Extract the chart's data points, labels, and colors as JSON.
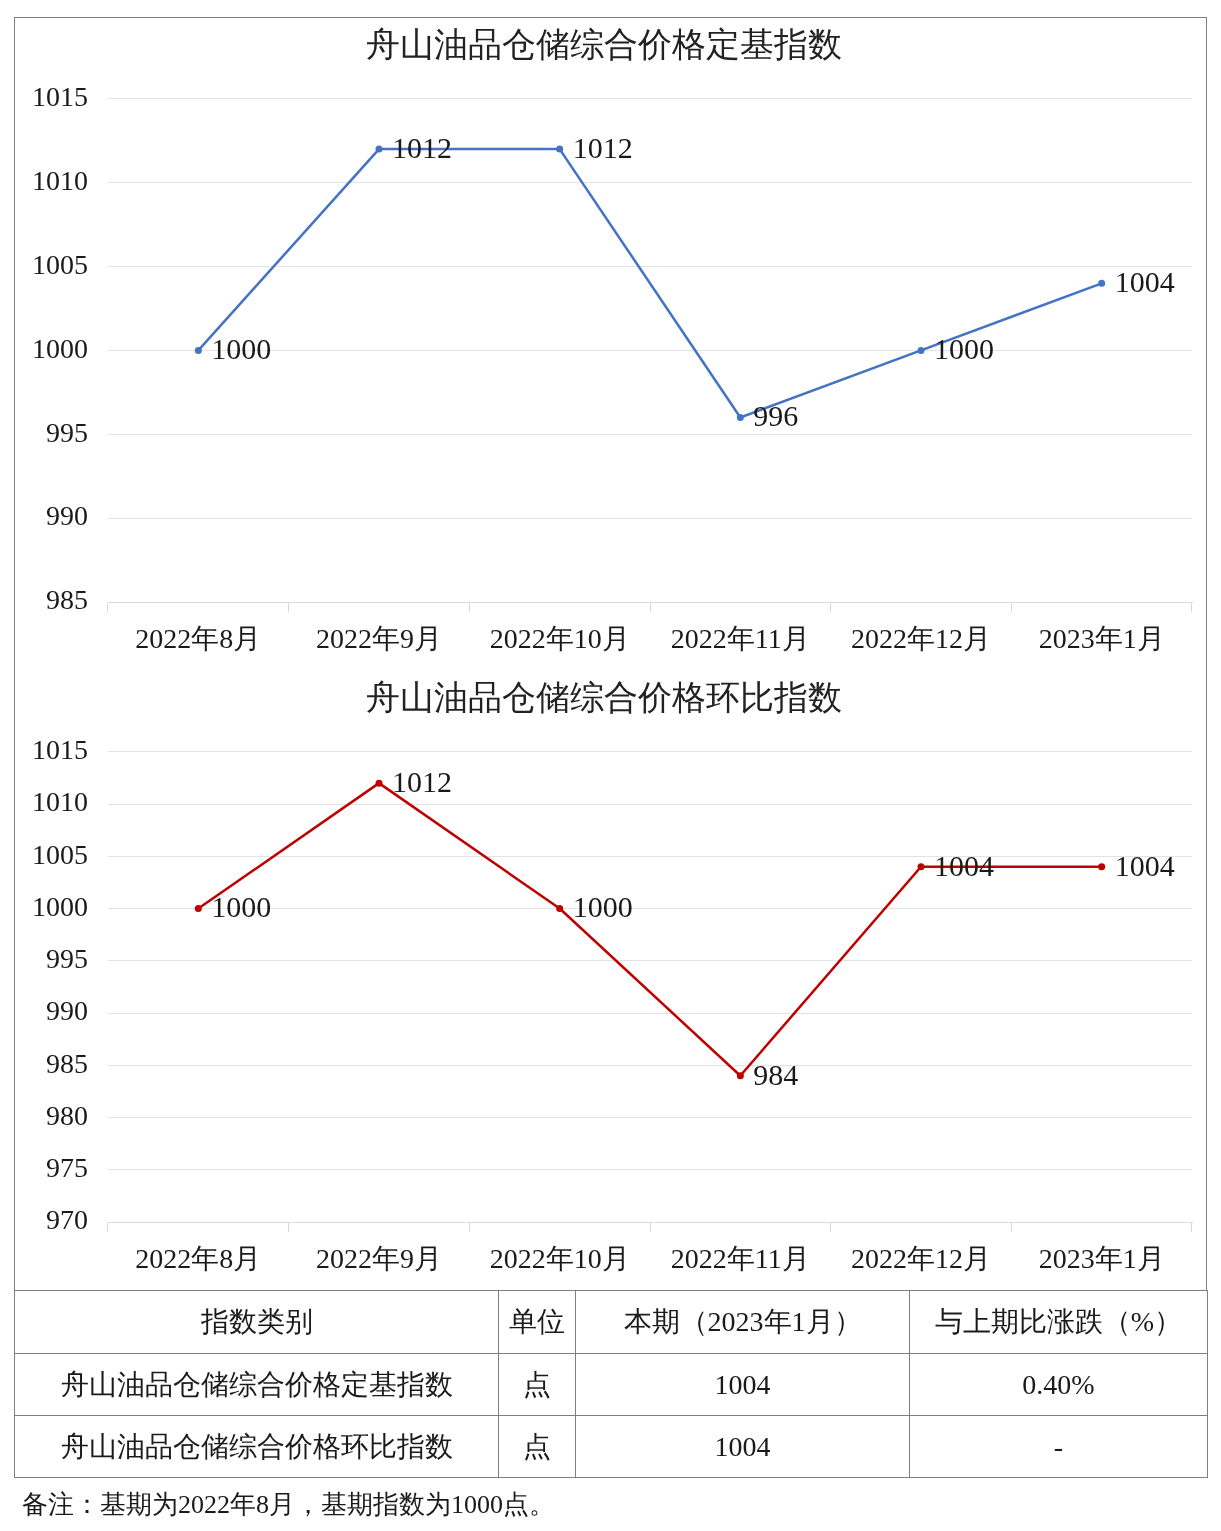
{
  "chart_data": [
    {
      "type": "line",
      "title": "舟山油品仓储综合价格定基指数",
      "categories": [
        "2022年8月",
        "2022年9月",
        "2022年10月",
        "2022年11月",
        "2022年12月",
        "2023年1月"
      ],
      "values": [
        1000,
        1012,
        1012,
        996,
        1000,
        1004
      ],
      "color": "#4472c4",
      "ylim": [
        985,
        1015
      ],
      "yticks": [
        985,
        990,
        995,
        1000,
        1005,
        1010,
        1015
      ],
      "grid": "y",
      "marker": "circle",
      "data_labels": true
    },
    {
      "type": "line",
      "title": "舟山油品仓储综合价格环比指数",
      "categories": [
        "2022年8月",
        "2022年9月",
        "2022年10月",
        "2022年11月",
        "2022年12月",
        "2023年1月"
      ],
      "values": [
        1000,
        1012,
        1000,
        984,
        1004,
        1004
      ],
      "color": "#c00000",
      "ylim": [
        970,
        1015
      ],
      "yticks": [
        970,
        975,
        980,
        985,
        990,
        995,
        1000,
        1005,
        1010,
        1015
      ],
      "grid": "y",
      "marker": "circle",
      "data_labels": true
    },
    {
      "type": "other",
      "categories": [
        "指数类别",
        "单位",
        "本期（2023年1月）",
        "与上期比涨跌（%）"
      ],
      "y_categories": [
        "舟山油品仓储综合价格定基指数",
        "舟山油品仓储综合价格环比指数"
      ],
      "cell_labels": [
        [
          "点",
          "1004",
          "0.40%"
        ],
        [
          "点",
          "1004",
          "-"
        ]
      ],
      "annotations": [
        "备注：基期为2022年8月，基期指数为1000点。"
      ]
    }
  ]
}
